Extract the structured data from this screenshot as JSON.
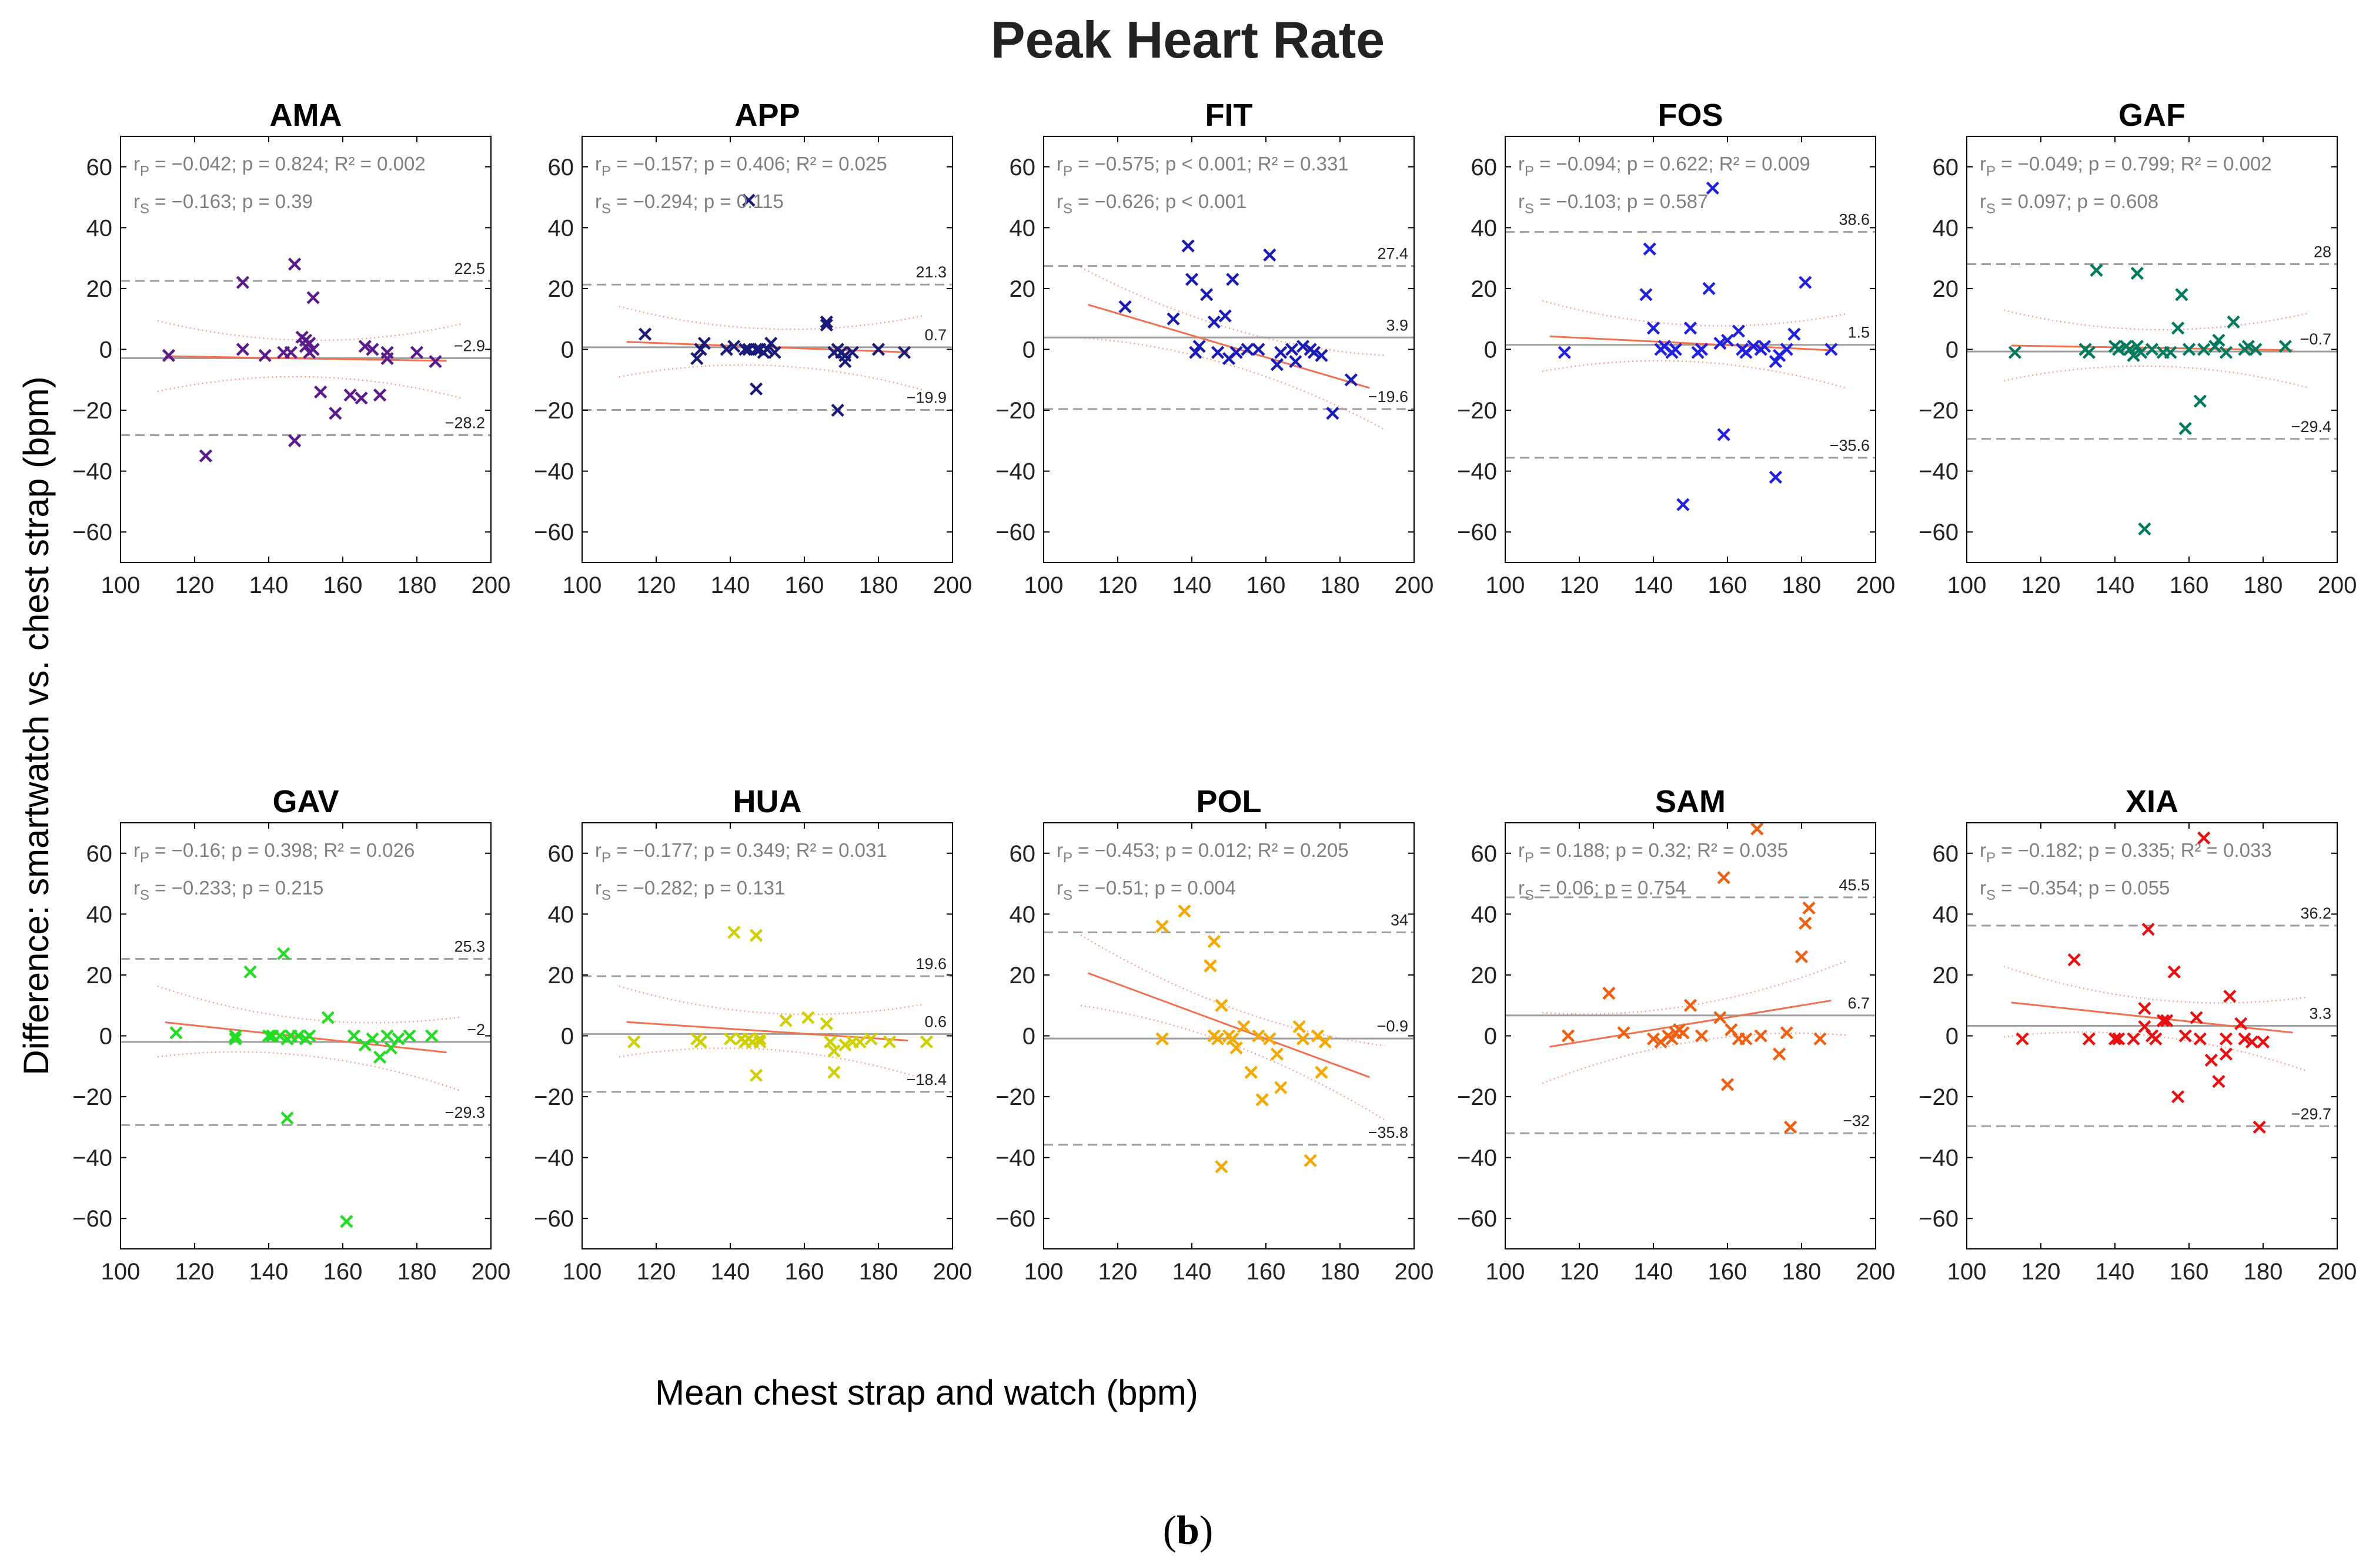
{
  "figure": {
    "title": "Peak Heart Rate",
    "ylabel": "Difference: smartwatch vs. chest strap (bpm)",
    "xlabel": "Mean chest strap and watch (bpm)",
    "caption_open": "(",
    "caption_letter": "b",
    "caption_close": ")"
  },
  "style": {
    "axis_color": "#000000",
    "grid_line_color": "#9e9e9e",
    "dashed_color": "#9e9e9e",
    "text_gray": "#808080",
    "fit_color": "#f07050",
    "ci_color": "#f4a090"
  },
  "chart_data": [
    {
      "type": "scatter",
      "title": "AMA",
      "color": "#5b1a8b",
      "xlim": [
        100,
        200
      ],
      "ylim": [
        -70,
        70
      ],
      "xticks": [
        100,
        120,
        140,
        160,
        180,
        200
      ],
      "yticks": [
        -60,
        -40,
        -20,
        0,
        20,
        40,
        60
      ],
      "stats": [
        "r_P = −0.042; p = 0.824; R² = 0.002",
        "r_S = −0.163; p = 0.39"
      ],
      "loa": {
        "upper": 22.5,
        "mean": -2.9,
        "lower": -28.2,
        "upper_label": "22.5",
        "mean_label": "−2.9",
        "lower_label": "−28.2"
      },
      "fit": {
        "slope": -0.02,
        "intercept": 0.0
      },
      "x": [
        113,
        123,
        133,
        133,
        139,
        144,
        146,
        147,
        147,
        149,
        150,
        150,
        151,
        151,
        152,
        152,
        154,
        158,
        162,
        165,
        166,
        168,
        170,
        172,
        172,
        180,
        185
      ],
      "y": [
        -2,
        -35,
        22,
        0,
        -2,
        -1,
        -1,
        28,
        -30,
        4,
        1,
        3,
        2,
        -1,
        17,
        0,
        -14,
        -21,
        -15,
        -16,
        1,
        0,
        -15,
        -1,
        -3,
        -1,
        -4
      ]
    },
    {
      "type": "scatter",
      "title": "APP",
      "color": "#1a1a7a",
      "xlim": [
        100,
        200
      ],
      "ylim": [
        -70,
        70
      ],
      "xticks": [
        100,
        120,
        140,
        160,
        180,
        200
      ],
      "yticks": [
        -60,
        -40,
        -20,
        0,
        20,
        40,
        60
      ],
      "stats": [
        "r_P = −0.157; p = 0.406; R² = 0.025",
        "r_S = −0.294; p = 0.115"
      ],
      "loa": {
        "upper": 21.3,
        "mean": 0.7,
        "lower": -19.9,
        "upper_label": "21.3",
        "mean_label": "0.7",
        "lower_label": "−19.9"
      },
      "fit": {
        "slope": -0.045,
        "intercept": 7.5
      },
      "x": [
        117,
        131,
        132,
        133,
        139,
        141,
        144,
        145,
        145,
        147,
        147,
        148,
        149,
        150,
        151,
        152,
        166,
        166,
        168,
        169,
        169,
        170,
        171,
        171,
        173,
        180,
        187
      ],
      "y": [
        5,
        -3,
        0,
        2,
        0,
        1,
        0,
        0,
        49,
        -13,
        0,
        0,
        -1,
        0,
        2,
        -1,
        8,
        9,
        -1,
        -20,
        0,
        -1,
        -2,
        -4,
        -1,
        0,
        -1
      ]
    },
    {
      "type": "scatter",
      "title": "FIT",
      "color": "#1a1ab4",
      "xlim": [
        100,
        200
      ],
      "ylim": [
        -70,
        70
      ],
      "xticks": [
        100,
        120,
        140,
        160,
        180,
        200
      ],
      "yticks": [
        -60,
        -40,
        -20,
        0,
        20,
        40,
        60
      ],
      "stats": [
        "r_P = −0.575; p < 0.001; R² = 0.331",
        "r_S = −0.626; p < 0.001"
      ],
      "loa": {
        "upper": 27.4,
        "mean": 3.9,
        "lower": -19.6,
        "upper_label": "27.4",
        "mean_label": "3.9",
        "lower_label": "−19.6"
      },
      "fit": {
        "slope": -0.36,
        "intercept": 55.0
      },
      "x": [
        122,
        135,
        139,
        140,
        141,
        142,
        144,
        146,
        147,
        149,
        150,
        151,
        152,
        155,
        158,
        161,
        163,
        164,
        167,
        168,
        170,
        172,
        173,
        175,
        178,
        183
      ],
      "y": [
        14,
        10,
        34,
        23,
        -1,
        1,
        18,
        9,
        -1,
        11,
        -3,
        23,
        -1,
        0,
        0,
        31,
        -5,
        -1,
        0,
        -4,
        1,
        0,
        -1,
        -2,
        -21,
        -10
      ]
    },
    {
      "type": "scatter",
      "title": "FOS",
      "color": "#2020e0",
      "xlim": [
        100,
        200
      ],
      "ylim": [
        -70,
        70
      ],
      "xticks": [
        100,
        120,
        140,
        160,
        180,
        200
      ],
      "yticks": [
        -60,
        -40,
        -20,
        0,
        20,
        40,
        60
      ],
      "stats": [
        "r_P = −0.094; p = 0.622; R² = 0.009",
        "r_S = −0.103; p = 0.587"
      ],
      "loa": {
        "upper": 38.6,
        "mean": 1.5,
        "lower": -35.6,
        "upper_label": "38.6",
        "mean_label": "1.5",
        "lower_label": "−35.6"
      },
      "fit": {
        "slope": -0.06,
        "intercept": 11.0
      },
      "x": [
        116,
        138,
        139,
        140,
        142,
        143,
        145,
        146,
        148,
        150,
        152,
        153,
        155,
        156,
        158,
        159,
        160,
        163,
        164,
        165,
        167,
        169,
        170,
        173,
        173,
        174,
        176,
        178,
        181,
        188
      ],
      "y": [
        -1,
        18,
        33,
        7,
        0,
        1,
        -1,
        0,
        -51,
        7,
        -1,
        0,
        20,
        53,
        2,
        -28,
        3,
        6,
        0,
        -1,
        1,
        0,
        1,
        -42,
        -4,
        -2,
        0,
        5,
        22,
        0
      ]
    },
    {
      "type": "scatter",
      "title": "GAF",
      "color": "#007a5c",
      "xlim": [
        100,
        200
      ],
      "ylim": [
        -70,
        70
      ],
      "xticks": [
        100,
        120,
        140,
        160,
        180,
        200
      ],
      "yticks": [
        -60,
        -40,
        -20,
        0,
        20,
        40,
        60
      ],
      "stats": [
        "r_P = −0.049; p = 0.799; R² = 0.002",
        "r_S = 0.097; p = 0.608"
      ],
      "loa": {
        "upper": 28,
        "mean": -0.7,
        "lower": -29.4,
        "upper_label": "28",
        "mean_label": "−0.7",
        "lower_label": "−29.4"
      },
      "fit": {
        "slope": -0.02,
        "intercept": 3.5
      },
      "x": [
        113,
        132,
        133,
        135,
        140,
        141,
        143,
        144,
        145,
        146,
        146,
        147,
        148,
        150,
        153,
        155,
        157,
        158,
        159,
        160,
        163,
        164,
        167,
        168,
        170,
        172,
        175,
        176,
        178,
        186
      ],
      "y": [
        -1,
        0,
        -1,
        26,
        1,
        0,
        1,
        0,
        -2,
        25,
        1,
        -1,
        -59,
        0,
        -1,
        -1,
        7,
        18,
        -26,
        0,
        -17,
        0,
        1,
        3,
        -1,
        9,
        0,
        1,
        0,
        1
      ]
    },
    {
      "type": "scatter",
      "title": "GAV",
      "color": "#22dd22",
      "xlim": [
        100,
        200
      ],
      "ylim": [
        -70,
        70
      ],
      "xticks": [
        100,
        120,
        140,
        160,
        180,
        200
      ],
      "yticks": [
        -60,
        -40,
        -20,
        0,
        20,
        40,
        60
      ],
      "stats": [
        "r_P = −0.16; p = 0.398; R² = 0.026",
        "r_S = −0.233; p = 0.215"
      ],
      "loa": {
        "upper": 25.3,
        "mean": -2,
        "lower": -29.3,
        "upper_label": "25.3",
        "mean_label": "−2",
        "lower_label": "−29.3"
      },
      "fit": {
        "slope": -0.13,
        "intercept": 19.0
      },
      "x": [
        115,
        131,
        131,
        135,
        140,
        141,
        143,
        144,
        145,
        145,
        146,
        148,
        150,
        151,
        156,
        161,
        163,
        166,
        168,
        170,
        172,
        173,
        175,
        178,
        184
      ],
      "y": [
        1,
        -1,
        0,
        21,
        0,
        0,
        0,
        27,
        -27,
        -1,
        0,
        0,
        -1,
        0,
        6,
        -61,
        0,
        -3,
        -1,
        -7,
        0,
        -4,
        -1,
        0,
        0
      ]
    },
    {
      "type": "scatter",
      "title": "HUA",
      "color": "#d0d000",
      "xlim": [
        100,
        200
      ],
      "ylim": [
        -70,
        70
      ],
      "xticks": [
        100,
        120,
        140,
        160,
        180,
        200
      ],
      "yticks": [
        -60,
        -40,
        -20,
        0,
        20,
        40,
        60
      ],
      "stats": [
        "r_P = −0.177; p = 0.349; R² = 0.031",
        "r_S = −0.282; p = 0.131"
      ],
      "loa": {
        "upper": 19.6,
        "mean": 0.6,
        "lower": -18.4,
        "upper_label": "19.6",
        "mean_label": "0.6",
        "lower_label": "−18.4"
      },
      "fit": {
        "slope": -0.08,
        "intercept": 13.5
      },
      "x": [
        114,
        131,
        132,
        140,
        141,
        143,
        144,
        145,
        146,
        147,
        147,
        148,
        148,
        155,
        161,
        166,
        167,
        168,
        168,
        171,
        173,
        175,
        178,
        183,
        193
      ],
      "y": [
        -2,
        -1,
        -2,
        -1,
        34,
        -1,
        -2,
        -1,
        -2,
        33,
        -13,
        -1,
        -2,
        5,
        6,
        4,
        -2,
        -5,
        -12,
        -3,
        -2,
        -2,
        -1,
        -2,
        -2
      ]
    },
    {
      "type": "scatter",
      "title": "POL",
      "color": "#f5a800",
      "xlim": [
        100,
        200
      ],
      "ylim": [
        -70,
        70
      ],
      "xticks": [
        100,
        120,
        140,
        160,
        180,
        200
      ],
      "yticks": [
        -60,
        -40,
        -20,
        0,
        20,
        40,
        60
      ],
      "stats": [
        "r_P = −0.453; p = 0.012; R² = 0.205",
        "r_S = −0.51; p = 0.004"
      ],
      "loa": {
        "upper": 34,
        "mean": -0.9,
        "lower": -35.8,
        "upper_label": "34",
        "mean_label": "−0.9",
        "lower_label": "−35.8"
      },
      "fit": {
        "slope": -0.45,
        "intercept": 71.0
      },
      "x": [
        132,
        132,
        138,
        145,
        146,
        146,
        147,
        148,
        148,
        150,
        151,
        152,
        154,
        156,
        158,
        159,
        161,
        163,
        164,
        169,
        170,
        172,
        174,
        175,
        176
      ],
      "y": [
        36,
        -1,
        41,
        23,
        0,
        31,
        -1,
        -43,
        10,
        0,
        -1,
        -4,
        3,
        -12,
        0,
        -21,
        -1,
        -6,
        -17,
        3,
        -1,
        -41,
        0,
        -12,
        -2
      ]
    },
    {
      "type": "scatter",
      "title": "SAM",
      "color": "#f06010",
      "xlim": [
        100,
        200
      ],
      "ylim": [
        -70,
        70
      ],
      "xticks": [
        100,
        120,
        140,
        160,
        180,
        200
      ],
      "yticks": [
        -60,
        -40,
        -20,
        0,
        20,
        40,
        60
      ],
      "stats": [
        "r_P = 0.188; p = 0.32; R² = 0.035",
        "r_S = 0.06; p = 0.754"
      ],
      "loa": {
        "upper": 45.5,
        "mean": 6.7,
        "lower": -32,
        "upper_label": "45.5",
        "mean_label": "6.7",
        "lower_label": "−32"
      },
      "fit": {
        "slope": 0.2,
        "intercept": -26.0
      },
      "x": [
        117,
        128,
        132,
        140,
        142,
        144,
        145,
        146,
        147,
        148,
        150,
        153,
        158,
        159,
        160,
        161,
        163,
        165,
        168,
        169,
        174,
        176,
        177,
        180,
        181,
        182,
        185
      ],
      "y": [
        0,
        14,
        1,
        -1,
        -2,
        0,
        -1,
        1,
        2,
        1,
        10,
        0,
        6,
        52,
        -16,
        2,
        -1,
        -1,
        68,
        0,
        -6,
        1,
        -30,
        26,
        37,
        42,
        -1
      ]
    },
    {
      "type": "scatter",
      "title": "XIA",
      "color": "#e81010",
      "xlim": [
        100,
        200
      ],
      "ylim": [
        -70,
        70
      ],
      "xticks": [
        100,
        120,
        140,
        160,
        180,
        200
      ],
      "yticks": [
        -60,
        -40,
        -20,
        0,
        20,
        40,
        60
      ],
      "stats": [
        "r_P = −0.182; p = 0.335; R² = 0.033",
        "r_S = −0.354; p = 0.055"
      ],
      "loa": {
        "upper": 36.2,
        "mean": 3.3,
        "lower": -29.7,
        "upper_label": "36.2",
        "mean_label": "3.3",
        "lower_label": "−29.7"
      },
      "fit": {
        "slope": -0.13,
        "intercept": 25.5
      },
      "x": [
        115,
        129,
        133,
        140,
        141,
        145,
        148,
        148,
        149,
        150,
        151,
        153,
        154,
        156,
        157,
        159,
        162,
        163,
        164,
        166,
        168,
        170,
        170,
        171,
        174,
        175,
        177,
        179,
        180
      ],
      "y": [
        -1,
        25,
        -1,
        -1,
        -1,
        -1,
        9,
        3,
        35,
        0,
        -1,
        5,
        5,
        21,
        -20,
        0,
        6,
        -1,
        65,
        -8,
        -15,
        -1,
        -6,
        13,
        4,
        -1,
        -2,
        -30,
        -2
      ]
    }
  ]
}
